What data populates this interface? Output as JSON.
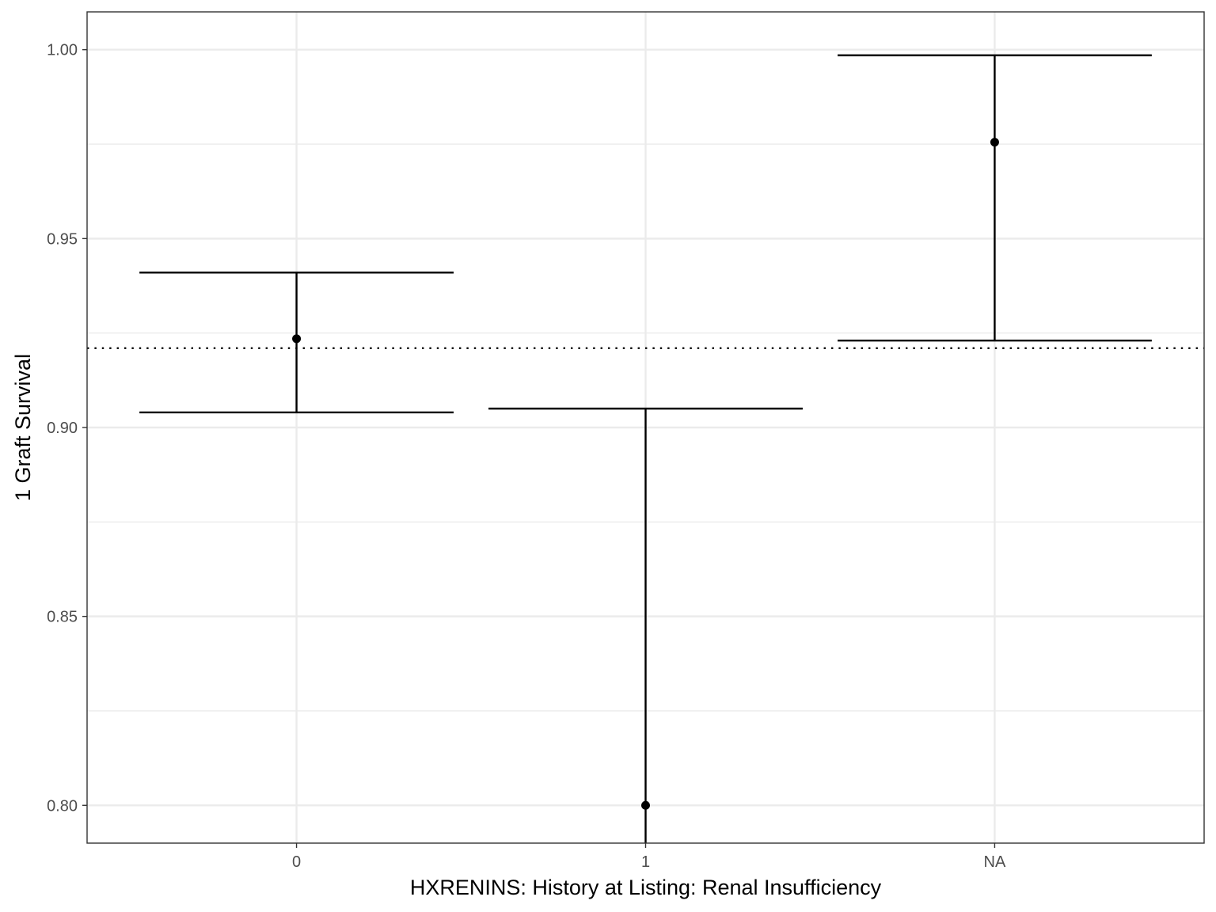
{
  "chart_data": {
    "type": "errorbar",
    "title": "",
    "xlabel": "HXRENINS: History at Listing: Renal Insufficiency",
    "ylabel": "1 Graft Survival",
    "categories": [
      "0",
      "1",
      "NA"
    ],
    "points": [
      {
        "category": "0",
        "estimate": 0.9235,
        "lower": 0.904,
        "upper": 0.941
      },
      {
        "category": "1",
        "estimate": 0.8,
        "lower": 0.78,
        "upper": 0.905
      },
      {
        "category": "NA",
        "estimate": 0.9755,
        "lower": 0.923,
        "upper": 0.9985
      }
    ],
    "reference_line": {
      "y": 0.921,
      "style": "dotted"
    },
    "ylim": [
      0.79,
      1.01
    ],
    "y_ticks": [
      "0.80",
      "0.85",
      "0.90",
      "0.95",
      "1.00"
    ],
    "y_minor_ticks": [
      0.825,
      0.875,
      0.925,
      0.975
    ],
    "grid": true,
    "legend": "none",
    "colors": {
      "marks": "#000000",
      "grid": "#ebebeb",
      "panel_border": "#333333",
      "tick_text": "#4d4d4d"
    }
  }
}
